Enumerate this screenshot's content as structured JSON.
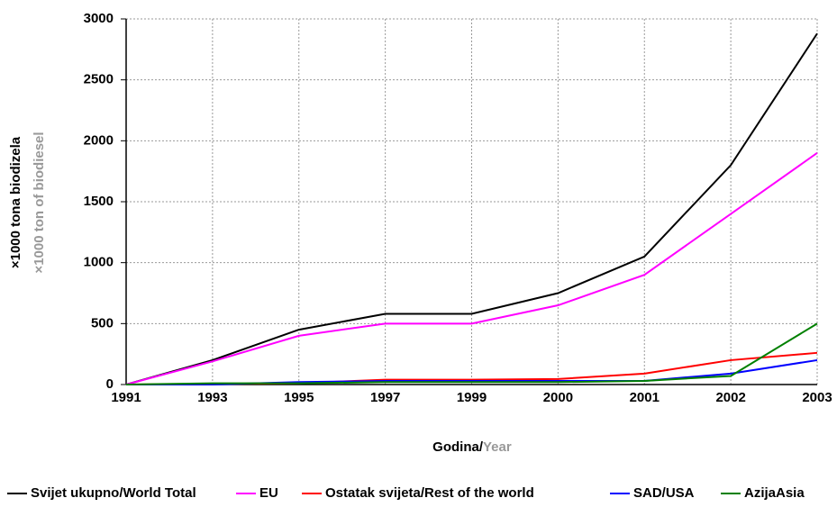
{
  "chart_data": {
    "type": "line",
    "y_label": "×1000 tona biodizela",
    "y_label_en": "×1000 ton of biodiesel",
    "x_label": "Godina/",
    "x_label_en": "Year",
    "categories": [
      "1991",
      "1993",
      "1995",
      "1997",
      "1999",
      "2000",
      "2001",
      "2002",
      "2003"
    ],
    "series": [
      {
        "name": "Svijet ukupno/World Total",
        "color": "#000000",
        "values": [
          0,
          200,
          450,
          580,
          580,
          750,
          1050,
          1800,
          2880
        ]
      },
      {
        "name": "EU",
        "color": "#ff00ff",
        "values": [
          0,
          190,
          400,
          500,
          500,
          650,
          900,
          1400,
          1900
        ]
      },
      {
        "name": "Ostatak svijeta/Rest of the world",
        "color": "#ff0000",
        "values": [
          0,
          5,
          10,
          40,
          40,
          45,
          90,
          200,
          260
        ]
      },
      {
        "name": "SAD/USA",
        "color": "#0000ff",
        "values": [
          0,
          0,
          20,
          30,
          30,
          30,
          30,
          90,
          200
        ]
      },
      {
        "name": "AzijaAsia",
        "color": "#008000",
        "values": [
          0,
          10,
          10,
          20,
          20,
          20,
          30,
          70,
          500
        ]
      }
    ],
    "ylim": [
      0,
      3000
    ],
    "yticks": [
      0,
      500,
      1000,
      1500,
      2000,
      2500,
      3000
    ],
    "grid": true,
    "legend": "bottom"
  }
}
